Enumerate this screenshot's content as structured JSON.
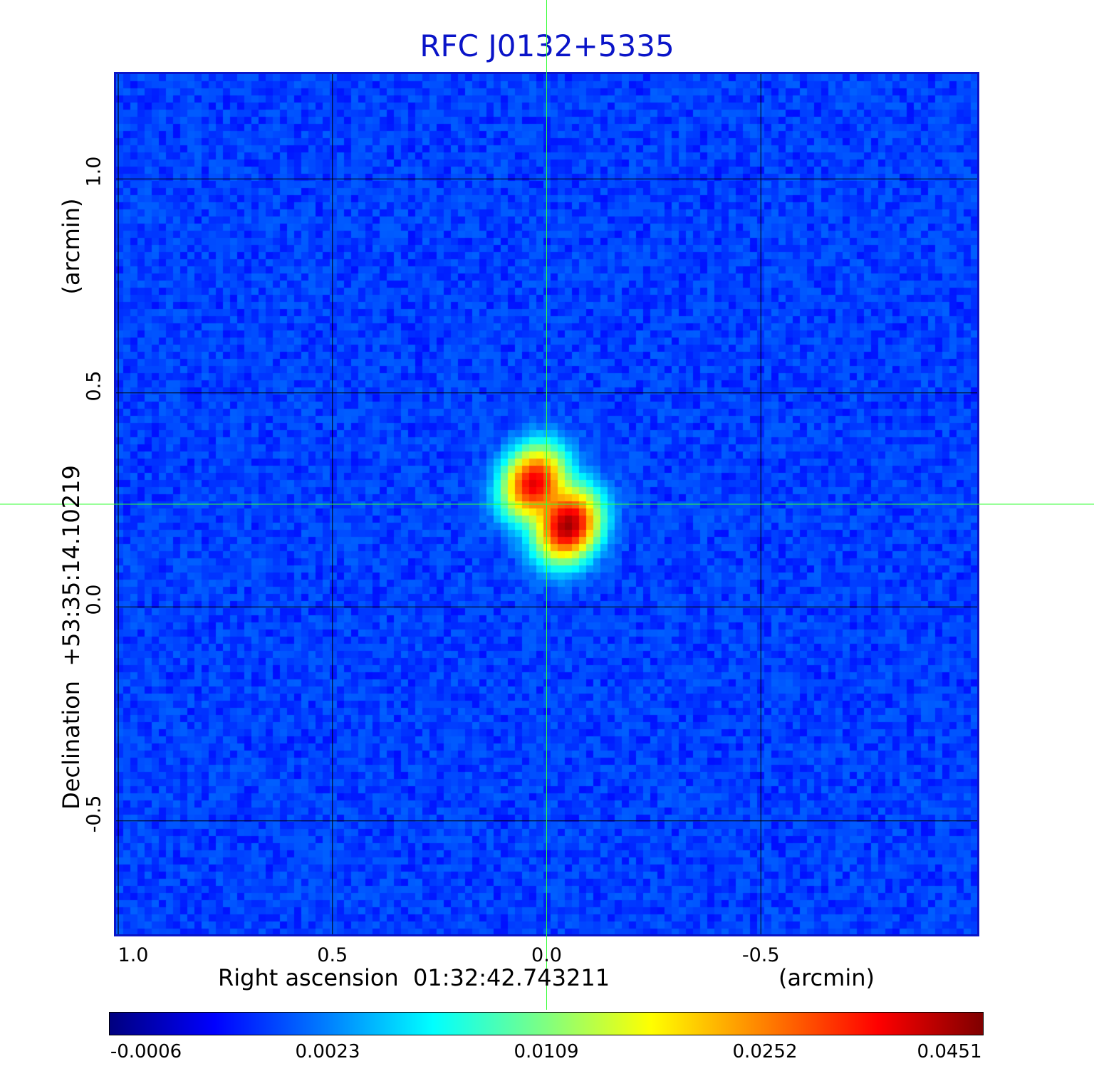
{
  "chart_data": {
    "type": "heatmap",
    "title": "RFC J0132+5335",
    "xlabel": "Right ascension  01:32:42.743211",
    "xunit": "(arcmin)",
    "ylabel": "Declination  +53:35:14.10219",
    "yunit": "(arcmin)",
    "xlim": [
      1.01,
      -1.01
    ],
    "ylim": [
      -0.77,
      1.25
    ],
    "xticks": [
      {
        "value": 1.0,
        "label": "1.0"
      },
      {
        "value": 0.5,
        "label": "0.5"
      },
      {
        "value": 0.0,
        "label": "0.0"
      },
      {
        "value": -0.5,
        "label": "-0.5"
      }
    ],
    "yticks": [
      {
        "value": 1.0,
        "label": "1.0"
      },
      {
        "value": 0.5,
        "label": "0.5"
      },
      {
        "value": 0.0,
        "label": "0.0"
      },
      {
        "value": -0.5,
        "label": "-0.5"
      }
    ],
    "grid": true,
    "crosshair": {
      "x": 0.0,
      "y": 0.24
    },
    "colormap": "jet",
    "colorbar": {
      "ticks": [
        {
          "value": -0.0006,
          "label": "-0.0006"
        },
        {
          "value": 0.0023,
          "label": "0.0023"
        },
        {
          "value": 0.0109,
          "label": "0.0109"
        },
        {
          "value": 0.0252,
          "label": "0.0252"
        },
        {
          "value": 0.0451,
          "label": "0.0451"
        }
      ]
    },
    "background_level": -0.0002,
    "sources": [
      {
        "ra_offset": 0.03,
        "dec_offset": 0.29,
        "peak": 0.038
      },
      {
        "ra_offset": -0.05,
        "dec_offset": 0.19,
        "peak": 0.0451
      }
    ]
  },
  "colors": {
    "title": "#0a14c8",
    "frame": "#0a14c8",
    "grid": "#000000",
    "crosshair": "#33ff33"
  }
}
